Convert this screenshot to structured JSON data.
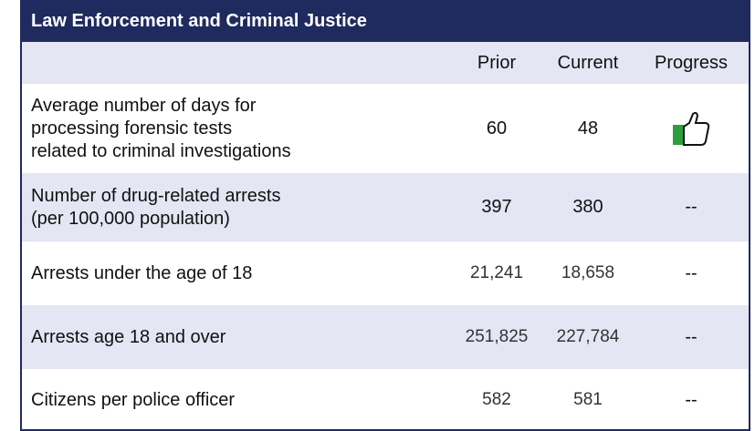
{
  "header": {
    "title": "Law Enforcement and Criminal Justice"
  },
  "table": {
    "columns": [
      "Prior",
      "Current",
      "Progress"
    ],
    "rows": [
      {
        "label": [
          "Average number of days for",
          "processing forensic tests",
          "related to criminal investigations"
        ],
        "prior": "60",
        "current": "48"
      },
      {
        "label": [
          "Number of drug-related arrests",
          "(per 100,000 population)"
        ],
        "prior": "397",
        "current": "380",
        "progress": "--"
      },
      {
        "label": [
          "Arrests under the age of 18"
        ],
        "prior": "21,241",
        "current": "18,658",
        "progress": "--"
      },
      {
        "label": [
          "Arrests age 18 and over"
        ],
        "prior": "251,825",
        "current": "227,784",
        "progress": "--"
      },
      {
        "label": [
          "Citizens per police officer"
        ],
        "prior": "582",
        "current": "581",
        "progress": "--"
      }
    ]
  }
}
